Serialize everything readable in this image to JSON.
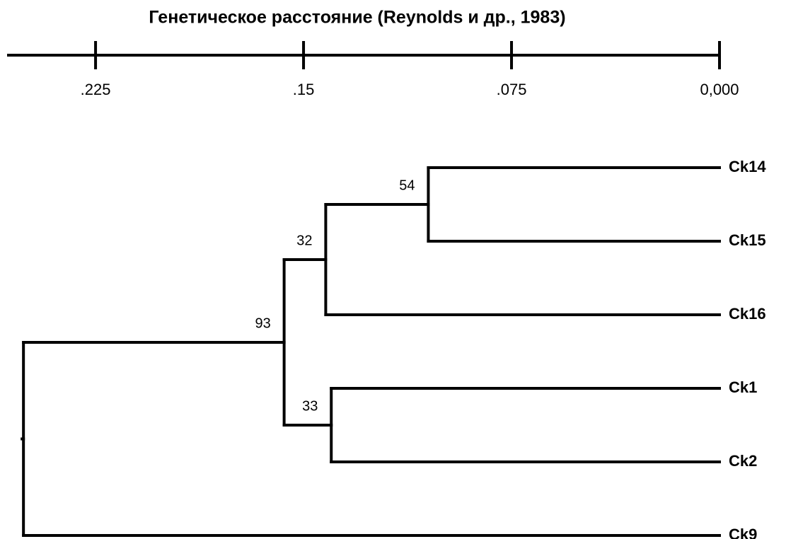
{
  "chart_data": {
    "type": "dendrogram",
    "title": "Генетическое расстояние (Reynolds и др., 1983)",
    "xlim": [
      0.2564,
      0
    ],
    "xticks": [
      {
        "value": 0.225,
        "label": ".225"
      },
      {
        "value": 0.15,
        "label": ".15"
      },
      {
        "value": 0.075,
        "label": ".075"
      },
      {
        "value": 0,
        "label": "0,000"
      }
    ],
    "color": "#000000",
    "tree": {
      "height": 0.251,
      "children": [
        {
          "height": 0.157,
          "support": 93,
          "children": [
            {
              "height": 0.142,
              "support": 32,
              "children": [
                {
                  "height": 0.105,
                  "support": 54,
                  "children": [
                    {
                      "name": "Ck14"
                    },
                    {
                      "name": "Ck15"
                    }
                  ]
                },
                {
                  "name": "Ck16"
                }
              ]
            },
            {
              "height": 0.14,
              "support": 33,
              "children": [
                {
                  "name": "Ck1"
                },
                {
                  "name": "Ck2"
                }
              ]
            }
          ]
        },
        {
          "name": "Ck9"
        }
      ]
    }
  }
}
